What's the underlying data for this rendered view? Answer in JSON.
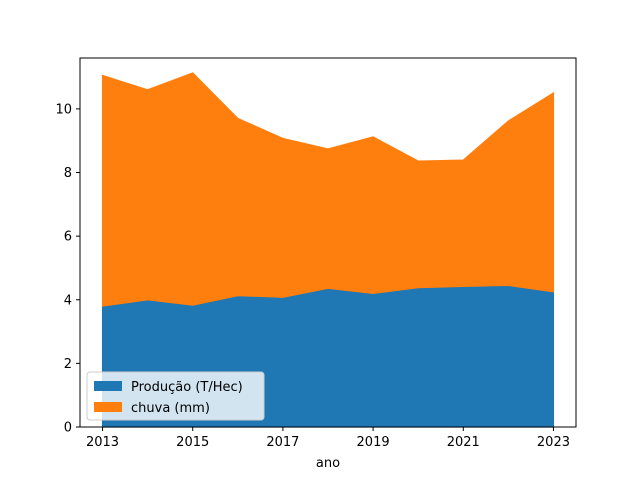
{
  "chart_data": {
    "type": "area",
    "stacked": true,
    "x": [
      2013,
      2014,
      2015,
      2016,
      2017,
      2018,
      2019,
      2020,
      2021,
      2022,
      2023
    ],
    "series": [
      {
        "name": "Produção (T/Hec)",
        "color": "#1f77b4",
        "values": [
          3.8,
          4.0,
          3.83,
          4.13,
          4.08,
          4.36,
          4.2,
          4.38,
          4.42,
          4.45,
          4.25
        ]
      },
      {
        "name": "chuva (mm)",
        "color": "#ff7f0e",
        "values": [
          7.25,
          6.6,
          7.3,
          5.57,
          4.99,
          4.38,
          4.92,
          3.98,
          3.97,
          5.17,
          6.25
        ]
      }
    ],
    "xlabel": "ano",
    "ylabel": "",
    "title": "",
    "xlim": [
      2012.5,
      2023.5
    ],
    "ylim": [
      0,
      11.6
    ],
    "xticks": [
      "2013",
      "2015",
      "2017",
      "2019",
      "2021",
      "2023"
    ],
    "yticks": [
      "0",
      "2",
      "4",
      "6",
      "8",
      "10"
    ],
    "grid": false,
    "legend_position": "lower-left"
  }
}
